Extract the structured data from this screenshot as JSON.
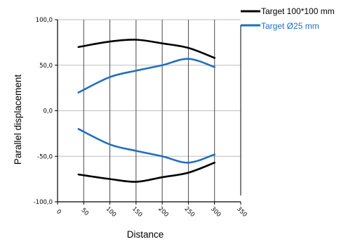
{
  "chart_data": {
    "type": "line",
    "title": "",
    "xlabel": "Distance",
    "ylabel": "Parallel displacement",
    "xlim": [
      0,
      350
    ],
    "ylim": [
      -100,
      100
    ],
    "x_ticks": [
      0,
      50,
      100,
      150,
      200,
      250,
      300,
      350
    ],
    "y_ticks": [
      -100,
      -50,
      0,
      50,
      100
    ],
    "y_tick_labels": [
      "-100,0",
      "-50,0",
      "0,0",
      "50,0",
      "100,0"
    ],
    "x_tick_labels": [
      "0",
      "50",
      "100",
      "150",
      "200",
      "250",
      "300",
      "350"
    ],
    "grid": "vertical lines at x ticks; horizontal lines at y ticks",
    "legend_position": "top-right, outside plot area",
    "series": [
      {
        "name": "Target 100*100 mm",
        "color": "#000000",
        "x": [
          40,
          100,
          150,
          200,
          250,
          300
        ],
        "y": [
          70,
          76,
          78,
          74,
          69,
          58
        ]
      },
      {
        "name": "",
        "color": "#000000",
        "x": [
          40,
          100,
          150,
          200,
          250,
          300
        ],
        "y": [
          -70,
          -75,
          -78,
          -73,
          -68,
          -57
        ]
      },
      {
        "name": "Target Ø25 mm",
        "color": "#1f6fbf",
        "x": [
          40,
          100,
          150,
          200,
          250,
          300
        ],
        "y": [
          20,
          37,
          44,
          50,
          57,
          48
        ]
      },
      {
        "name": "",
        "color": "#1f6fbf",
        "x": [
          40,
          100,
          150,
          200,
          250,
          300
        ],
        "y": [
          -20,
          -37,
          -44,
          -50,
          -57,
          -48
        ]
      }
    ]
  },
  "legend": {
    "items": [
      {
        "label": "Target 100*100 mm",
        "color": "#000000"
      },
      {
        "label": "Target Ø25 mm",
        "color": "#1f6fbf"
      }
    ]
  }
}
